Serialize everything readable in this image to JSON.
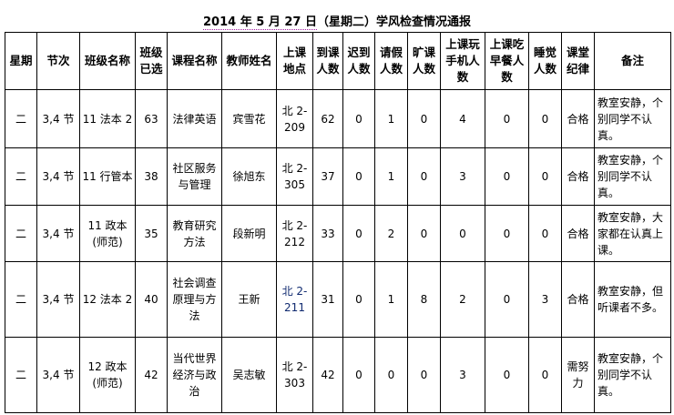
{
  "title": {
    "date": "2014 年 5 月 27 日",
    "rest": "（星期二）学风检查情况通报"
  },
  "columns": [
    "星期",
    "节次",
    "班级名称",
    "班级已选",
    "课程名称",
    "教师姓名",
    "上课地点",
    "到课人数",
    "迟到人数",
    "请假人数",
    "旷课人数",
    "上课玩手机人数",
    "上课吃早餐人数",
    "睡觉人数",
    "课堂纪律",
    "备注"
  ],
  "rows": [
    [
      "二",
      "3,4 节",
      "11 法本 2",
      "63",
      "法律英语",
      "宾雪花",
      "北 2-209",
      "62",
      "0",
      "1",
      "0",
      "4",
      "0",
      "0",
      "合格",
      "教室安静，个别同学不认真。"
    ],
    [
      "二",
      "3,4 节",
      "11 行管本",
      "38",
      "社区服务与管理",
      "徐旭东",
      "北 2-305",
      "37",
      "0",
      "1",
      "0",
      "3",
      "0",
      "0",
      "合格",
      "教室安静，个别同学不认真。"
    ],
    [
      "二",
      "3,4 节",
      "11 政本(师范)",
      "35",
      "教育研究方法",
      "段新明",
      "北 2-212",
      "33",
      "0",
      "2",
      "0",
      "0",
      "0",
      "0",
      "合格",
      "教室安静，大家都在认真上课。"
    ],
    [
      "二",
      "3,4 节",
      "12 法本 2",
      "40",
      "社会调查原理与方法",
      "王新",
      "北 2-211",
      "31",
      "0",
      "1",
      "8",
      "2",
      "0",
      "3",
      "合格",
      "教室安静，但听课者不多。"
    ],
    [
      "二",
      "3,4 节",
      "12 政本(师范)",
      "42",
      "当代世界经济与政治",
      "吴志敏",
      "北 2-303",
      "42",
      "0",
      "0",
      "0",
      "3",
      "0",
      "0",
      "需努力",
      "教室安静，个别同学不认真。"
    ]
  ]
}
